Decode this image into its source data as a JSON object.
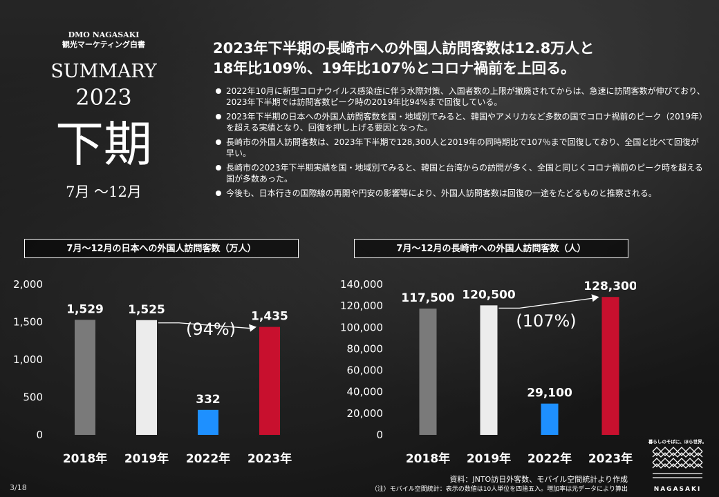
{
  "brand": {
    "org": "DMO NAGASAKI",
    "subtitle": "観光マーケティング白書"
  },
  "cover": {
    "summary": "SUMMARY",
    "year": "2023",
    "half": "下期",
    "period": "7月 〜12月"
  },
  "headline": {
    "line1": "2023年下半期の長崎市への外国人訪問客数は12.8万人と",
    "line2": "18年比109％、19年比107％とコロナ禍前を上回る。"
  },
  "bullets": [
    "2022年10月に新型コロナウイルス感染症に伴う水際対策、入国者数の上限が撤廃されてからは、急速に訪問客数が伸びており、2023年下半期では訪問客数ピーク時の2019年比94%まで回復している。",
    "2023年下半期の日本への外国人訪問客数を国・地域別でみると、韓国やアメリカなど多数の国でコロナ禍前のピーク（2019年）を超える実績となり、回復を押し上げる要因となった。",
    "長崎市の外国人訪問客数は、2023年下半期で128,300人と2019年の同時期比で107％まで回復しており、全国と比べて回復が早い。",
    "長崎市の2023年下半期実績を国・地域別でみると、韓国と台湾からの訪問が多く、全国と同じくコロナ禍前のピーク時を超える国が多数あった。",
    "今後も、日本行きの国際線の再開や円安の影響等により、外国人訪問客数は回復の一途をたどるものと推察される。"
  ],
  "colors": {
    "gray": "#7a7a7a",
    "white": "#ececec",
    "blue": "#1e90ff",
    "red": "#c8102e"
  },
  "chart_data": [
    {
      "type": "bar",
      "title": "7月～12月の日本への外国人訪問客数（万人）",
      "categories": [
        "2018年",
        "2019年",
        "2022年",
        "2023年"
      ],
      "values": [
        1529,
        1525,
        332,
        1435
      ],
      "value_labels": [
        "1,529",
        "1,525",
        "332",
        "1,435"
      ],
      "ylim": [
        0,
        2000
      ],
      "yticks": [
        0,
        500,
        1000,
        1500,
        2000
      ],
      "ytick_labels": [
        "0",
        "500",
        "1,000",
        "1,500",
        "2,000"
      ],
      "annotation": "(94%)",
      "grid": false
    },
    {
      "type": "bar",
      "title": "7月～12月の長崎市への外国人訪問客数（人）",
      "categories": [
        "2018年",
        "2019年",
        "2022年",
        "2023年"
      ],
      "values": [
        117500,
        120500,
        29100,
        128300
      ],
      "value_labels": [
        "117,500",
        "120,500",
        "29,100",
        "128,300"
      ],
      "ylim": [
        0,
        140000
      ],
      "yticks": [
        0,
        20000,
        40000,
        60000,
        80000,
        100000,
        120000,
        140000
      ],
      "ytick_labels": [
        "0",
        "20,000",
        "40,000",
        "60,000",
        "80,000",
        "100,000",
        "120,000",
        "140,000"
      ],
      "annotation": "(107%)",
      "grid": false
    }
  ],
  "source": {
    "line1": "資料：JNTO訪日外客数、モバイル空間統計より作成",
    "line2": "（注）モバイル空間統計：表示の数値は10人単位を四捨五入。増加率は元データにより算出"
  },
  "page": "3/18",
  "logo": {
    "tagline": "暮らしのそばに、ほら世界。",
    "name": "NAGASAKI"
  }
}
